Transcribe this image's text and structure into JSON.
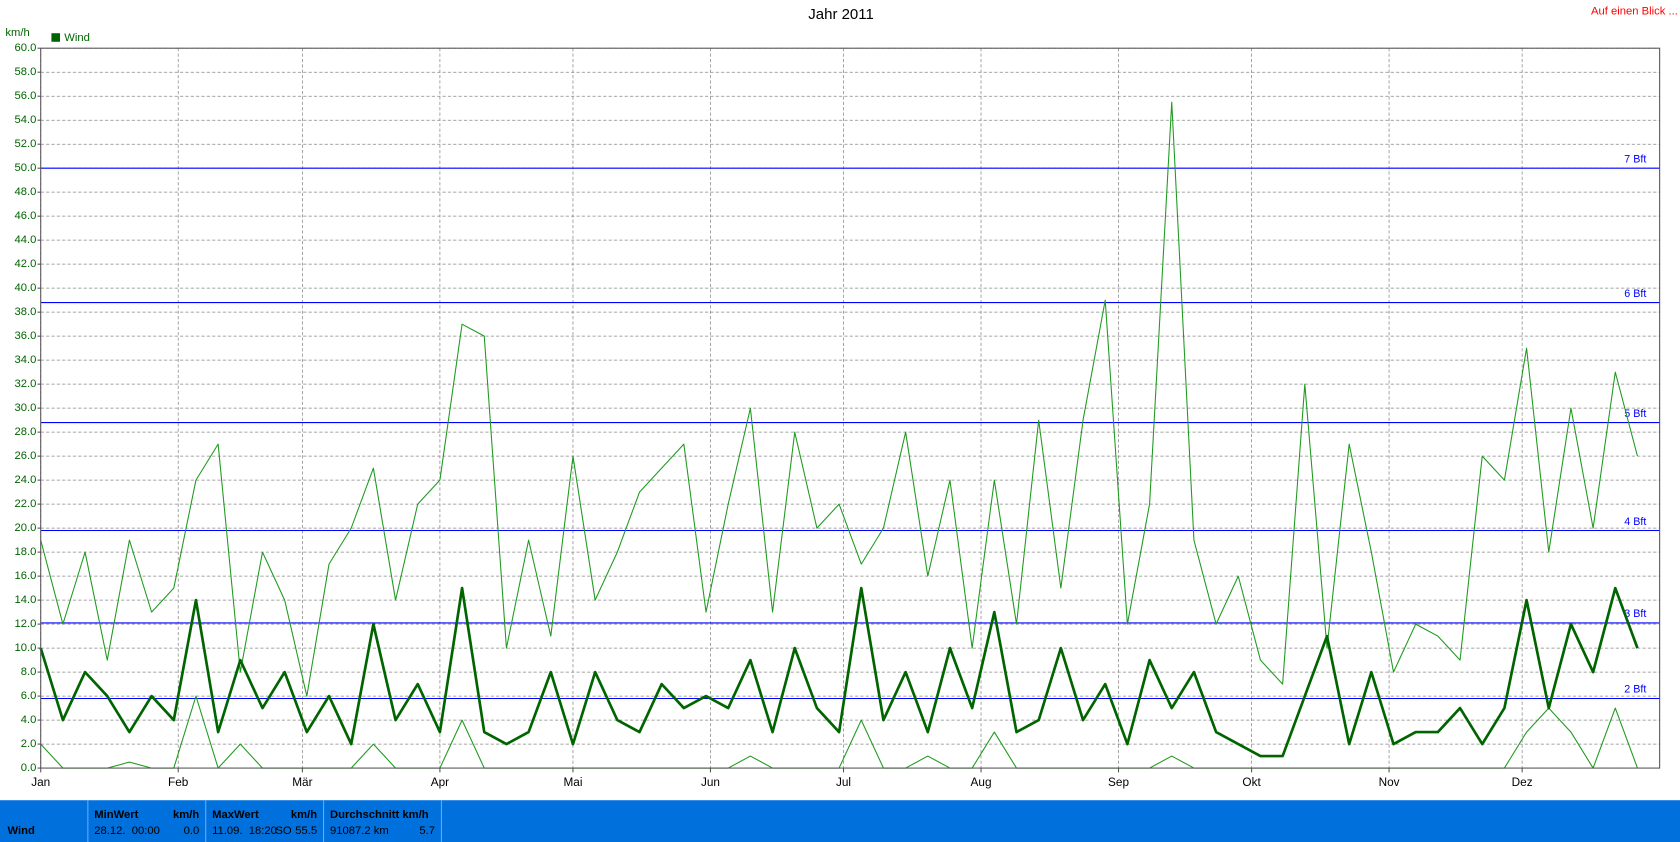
{
  "chart_data": {
    "type": "line",
    "title": "Jahr 2011",
    "y_label": "km/h",
    "link": "Auf einen Blick ...",
    "x": [
      1,
      6,
      11,
      16,
      21,
      26,
      31,
      36,
      41,
      46,
      51,
      56,
      61,
      66,
      71,
      76,
      81,
      86,
      91,
      96,
      101,
      106,
      111,
      116,
      121,
      126,
      131,
      136,
      141,
      146,
      151,
      156,
      161,
      166,
      171,
      176,
      181,
      186,
      191,
      196,
      201,
      206,
      211,
      216,
      221,
      226,
      231,
      236,
      241,
      246,
      251,
      256,
      261,
      266,
      271,
      276,
      281,
      286,
      291,
      296,
      301,
      306,
      311,
      316,
      321,
      326,
      331,
      336,
      341,
      346,
      351,
      356,
      361
    ],
    "xlim": [
      1,
      366
    ],
    "xticks": [
      {
        "value": 1,
        "label": "Jan"
      },
      {
        "value": 32,
        "label": "Feb"
      },
      {
        "value": 60,
        "label": "Mär"
      },
      {
        "value": 91,
        "label": "Apr"
      },
      {
        "value": 121,
        "label": "Mai"
      },
      {
        "value": 152,
        "label": "Jun"
      },
      {
        "value": 182,
        "label": "Jul"
      },
      {
        "value": 213,
        "label": "Aug"
      },
      {
        "value": 244,
        "label": "Sep"
      },
      {
        "value": 274,
        "label": "Okt"
      },
      {
        "value": 305,
        "label": "Nov"
      },
      {
        "value": 335,
        "label": "Dez"
      }
    ],
    "ylim": [
      0,
      60
    ],
    "yticks": [
      {
        "value": 0,
        "label": "0.0"
      },
      {
        "value": 2,
        "label": "2.0"
      },
      {
        "value": 4,
        "label": "4.0"
      },
      {
        "value": 6,
        "label": "6.0"
      },
      {
        "value": 8,
        "label": "8.0"
      },
      {
        "value": 10,
        "label": "10.0"
      },
      {
        "value": 12,
        "label": "12.0"
      },
      {
        "value": 14,
        "label": "14.0"
      },
      {
        "value": 16,
        "label": "16.0"
      },
      {
        "value": 18,
        "label": "18.0"
      },
      {
        "value": 20,
        "label": "20.0"
      },
      {
        "value": 22,
        "label": "22.0"
      },
      {
        "value": 24,
        "label": "24.0"
      },
      {
        "value": 26,
        "label": "26.0"
      },
      {
        "value": 28,
        "label": "28.0"
      },
      {
        "value": 30,
        "label": "30.0"
      },
      {
        "value": 32,
        "label": "32.0"
      },
      {
        "value": 34,
        "label": "34.0"
      },
      {
        "value": 36,
        "label": "36.0"
      },
      {
        "value": 38,
        "label": "38.0"
      },
      {
        "value": 40,
        "label": "40.0"
      },
      {
        "value": 42,
        "label": "42.0"
      },
      {
        "value": 44,
        "label": "44.0"
      },
      {
        "value": 46,
        "label": "46.0"
      },
      {
        "value": 48,
        "label": "48.0"
      },
      {
        "value": 50,
        "label": "50.0"
      },
      {
        "value": 52,
        "label": "52.0"
      },
      {
        "value": 54,
        "label": "54.0"
      },
      {
        "value": 56,
        "label": "56.0"
      },
      {
        "value": 58,
        "label": "58.0"
      },
      {
        "value": 60,
        "label": "60.0"
      }
    ],
    "grid": true,
    "reference_lines": [
      {
        "value": 5.8,
        "label": "2 Bft"
      },
      {
        "value": 12.1,
        "label": "3 Bft"
      },
      {
        "value": 19.8,
        "label": "4 Bft"
      },
      {
        "value": 28.8,
        "label": "5 Bft"
      },
      {
        "value": 38.8,
        "label": "6 Bft"
      },
      {
        "value": 50,
        "label": "7 Bft"
      }
    ],
    "reference_color": "#0000ff",
    "series": [
      {
        "color": "#1f9a1f",
        "width": 1,
        "values": [
          19,
          12,
          18,
          9,
          19,
          13,
          15,
          24,
          27,
          8,
          18,
          14,
          6,
          17,
          20,
          25,
          14,
          22,
          24,
          37,
          36,
          10,
          19,
          11,
          26,
          14,
          18,
          23,
          25,
          27,
          13,
          22,
          30,
          13,
          28,
          20,
          22,
          17,
          20,
          28,
          16,
          24,
          10,
          24,
          12,
          29,
          15,
          29,
          39,
          12,
          22,
          55.5,
          19,
          12,
          16,
          9,
          7,
          32,
          10,
          27,
          18,
          8,
          12,
          11,
          9,
          26,
          24,
          35,
          18,
          30,
          20,
          33,
          26
        ]
      },
      {
        "color": "#1f9a1f",
        "width": 1,
        "values": [
          2,
          0,
          0,
          0,
          0.5,
          0,
          0,
          6,
          0,
          2,
          0,
          0,
          0,
          0,
          0,
          2,
          0,
          0,
          0,
          4,
          0,
          0,
          0,
          0,
          0,
          0,
          0,
          0,
          0,
          0,
          0,
          0,
          1,
          0,
          0,
          0,
          0,
          4,
          0,
          0,
          1,
          0,
          0,
          3,
          0,
          0,
          0,
          0,
          0,
          0,
          0,
          1,
          0,
          0,
          0,
          0,
          0,
          0,
          0,
          0,
          0,
          0,
          0,
          0,
          0,
          0,
          0,
          3,
          5,
          3,
          0,
          5,
          0
        ]
      },
      {
        "name": "Wind",
        "color": "#006400",
        "width": 2.5,
        "values": [
          10,
          4,
          8,
          6,
          3,
          6,
          4,
          14,
          3,
          9,
          5,
          8,
          3,
          6,
          2,
          12,
          4,
          7,
          3,
          15,
          3,
          2,
          3,
          8,
          2,
          8,
          4,
          3,
          7,
          5,
          6,
          5,
          9,
          3,
          10,
          5,
          3,
          15,
          4,
          8,
          3,
          10,
          5,
          13,
          3,
          4,
          10,
          4,
          7,
          2,
          9,
          5,
          8,
          3,
          2,
          1,
          1,
          6,
          11,
          2,
          8,
          2,
          3,
          3,
          5,
          2,
          5,
          14,
          5,
          12,
          8,
          15,
          10
        ]
      }
    ]
  },
  "summary": {
    "row_label": "Wind",
    "min": {
      "header": "MinWert",
      "unit": "km/h",
      "time": "28.12.  00:00",
      "value": "0.0"
    },
    "max": {
      "header": "MaxWert",
      "unit": "km/h",
      "time": "11.09.  18:20",
      "direction": "SO",
      "value": "55.5"
    },
    "avg": {
      "header": "Durchschnitt km/h",
      "distance": "91087.2 km",
      "value": "5.7"
    }
  }
}
